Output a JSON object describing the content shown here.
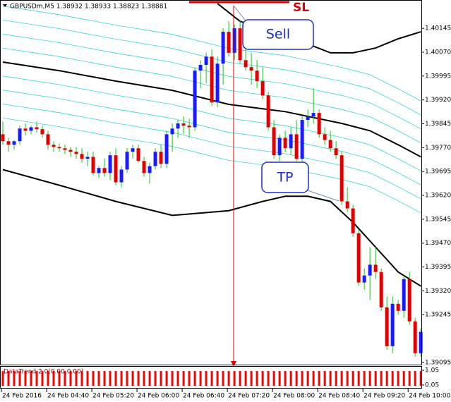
{
  "chart_data": {
    "type": "candlestick",
    "title": "GBPUSDm,M5  1.38932 1.38933 1.38823 1.38881",
    "xlim": [
      -0.5,
      74.1
    ],
    "ylim": [
      1.39088,
      1.40234
    ],
    "xticks": [
      {
        "value": 0,
        "label": "24 Feb 2016"
      },
      {
        "value": 8,
        "label": "24 Feb 04:40"
      },
      {
        "value": 16,
        "label": "24 Feb 05:20"
      },
      {
        "value": 24,
        "label": "24 Feb 06:00"
      },
      {
        "value": 32,
        "label": "24 Feb 06:40"
      },
      {
        "value": 40,
        "label": "24 Feb 07:20"
      },
      {
        "value": 48,
        "label": "24 Feb 08:00"
      },
      {
        "value": 56,
        "label": "24 Feb 08:40"
      },
      {
        "value": 64,
        "label": "24 Feb 09:20"
      },
      {
        "value": 72,
        "label": "24 Feb 10:00"
      }
    ],
    "yticks": [
      1.40145,
      {
        "value": 1.4007,
        "label": "1.40070"
      },
      1.39995,
      {
        "value": 1.3992,
        "label": "1.39920"
      },
      1.39845,
      {
        "value": 1.3977,
        "label": "1.39770"
      },
      1.39695,
      {
        "value": 1.3962,
        "label": "1.39620"
      },
      1.39545,
      {
        "value": 1.3947,
        "label": "1.39470"
      },
      1.39395,
      {
        "value": 1.3932,
        "label": "1.39320"
      },
      1.39245,
      1.39095
    ],
    "up_color": "#1a1aff",
    "down_color": "#e00000",
    "wick_color": "#22c022",
    "open": [
      1.39812,
      1.3979,
      1.39779,
      1.3979,
      1.3983,
      1.39823,
      1.39834,
      1.39828,
      1.39812,
      1.39779,
      1.39772,
      1.39768,
      1.39763,
      1.39757,
      1.3975,
      1.39735,
      1.39741,
      1.3969,
      1.39706,
      1.3969,
      1.39746,
      1.39661,
      1.39701,
      1.39757,
      1.39768,
      1.39728,
      1.3969,
      1.39712,
      1.39757,
      1.39719,
      1.39812,
      1.3983,
      1.39846,
      1.39839,
      1.39834,
      1.40012,
      1.4003,
      1.40056,
      1.39912,
      1.40034,
      1.40134,
      1.40068,
      1.40145,
      1.40045,
      1.40023,
      1.40012,
      1.39979,
      1.39934,
      1.39834,
      1.39746,
      1.39801,
      1.39768,
      1.39812,
      1.39735,
      1.39857,
      1.39868,
      1.39879,
      1.39812,
      1.39794,
      1.39768,
      1.39746,
      1.39601,
      1.39579,
      1.39501,
      1.39346,
      1.39368,
      1.39402,
      1.39379,
      1.39268,
      1.39146,
      1.39279,
      1.39257,
      1.39357,
      1.39224,
      1.39124
    ],
    "high": [
      1.39852,
      1.39801,
      1.39794,
      1.39839,
      1.39846,
      1.39839,
      1.39852,
      1.39839,
      1.39823,
      1.3979,
      1.39783,
      1.39779,
      1.39772,
      1.39772,
      1.39768,
      1.39757,
      1.39757,
      1.39712,
      1.39735,
      1.39757,
      1.39768,
      1.39712,
      1.39768,
      1.39779,
      1.39779,
      1.39741,
      1.39723,
      1.39768,
      1.39779,
      1.39823,
      1.39846,
      1.39857,
      1.39868,
      1.39861,
      1.40023,
      1.40045,
      1.40068,
      1.40079,
      1.40056,
      1.40145,
      1.40167,
      1.40156,
      1.40167,
      1.40101,
      1.40068,
      1.40045,
      1.40023,
      1.39945,
      1.39857,
      1.39812,
      1.39823,
      1.39834,
      1.39857,
      1.39868,
      1.3989,
      1.39957,
      1.3989,
      1.39834,
      1.39823,
      1.3979,
      1.39757,
      1.39646,
      1.3959,
      1.39513,
      1.3939,
      1.39457,
      1.39457,
      1.3939,
      1.39302,
      1.39302,
      1.39291,
      1.39368,
      1.39379,
      1.39235,
      1.39202
    ],
    "low": [
      1.39779,
      1.39757,
      1.39763,
      1.39779,
      1.39808,
      1.39812,
      1.39817,
      1.39801,
      1.39763,
      1.39757,
      1.39757,
      1.3975,
      1.39741,
      1.39735,
      1.39723,
      1.39712,
      1.39683,
      1.39675,
      1.39679,
      1.39668,
      1.39652,
      1.39646,
      1.3969,
      1.39735,
      1.39723,
      1.39679,
      1.39657,
      1.39701,
      1.39706,
      1.39706,
      1.39757,
      1.39801,
      1.39812,
      1.39801,
      1.39823,
      1.39957,
      1.39972,
      1.39901,
      1.39897,
      1.39968,
      1.40056,
      1.40045,
      1.40034,
      1.40012,
      1.39968,
      1.39957,
      1.39923,
      1.39823,
      1.39735,
      1.39728,
      1.39757,
      1.39746,
      1.39728,
      1.39719,
      1.39834,
      1.39846,
      1.39801,
      1.39779,
      1.39757,
      1.39735,
      1.3959,
      1.39568,
      1.3949,
      1.39335,
      1.39324,
      1.39291,
      1.39357,
      1.39257,
      1.39135,
      1.39124,
      1.39246,
      1.39235,
      1.39213,
      1.39113,
      1.39113
    ],
    "close": [
      1.3979,
      1.39779,
      1.3979,
      1.3983,
      1.39823,
      1.39834,
      1.39828,
      1.39812,
      1.39779,
      1.39772,
      1.39768,
      1.39763,
      1.39757,
      1.3975,
      1.39735,
      1.39741,
      1.3969,
      1.39706,
      1.3969,
      1.39746,
      1.39661,
      1.39701,
      1.39757,
      1.39768,
      1.39728,
      1.3969,
      1.39712,
      1.39757,
      1.39719,
      1.39812,
      1.3983,
      1.39846,
      1.39839,
      1.39834,
      1.40012,
      1.4003,
      1.40056,
      1.39912,
      1.40034,
      1.40134,
      1.40068,
      1.40145,
      1.40045,
      1.40023,
      1.40012,
      1.39979,
      1.39934,
      1.39834,
      1.39746,
      1.39801,
      1.39768,
      1.39812,
      1.39735,
      1.39857,
      1.39868,
      1.39879,
      1.39812,
      1.39794,
      1.39768,
      1.39746,
      1.39601,
      1.39579,
      1.39501,
      1.39346,
      1.39368,
      1.39402,
      1.39379,
      1.39268,
      1.39146,
      1.39279,
      1.39257,
      1.39357,
      1.39224,
      1.39124,
      1.39191
    ],
    "series": [
      {
        "color": "#000000",
        "x": [
          0,
          10,
          20,
          30,
          40,
          50,
          60,
          65,
          70,
          74
        ],
        "values": [
          1.40039,
          1.40012,
          1.39979,
          1.3995,
          1.39906,
          1.39883,
          1.39846,
          1.39823,
          1.39779,
          1.39741
        ]
      },
      {
        "color": "#000000",
        "x": [
          38,
          42,
          46,
          50,
          54,
          58,
          62,
          66,
          70,
          74
        ],
        "values": [
          1.40223,
          1.40167,
          1.40145,
          1.40128,
          1.40096,
          1.40068,
          1.40068,
          1.40083,
          1.40112,
          1.40134
        ]
      },
      {
        "color": "#000000",
        "x": [
          0,
          10,
          20,
          30,
          40,
          46,
          50,
          54,
          58,
          62,
          66,
          70,
          74
        ],
        "values": [
          1.39701,
          1.39652,
          1.39601,
          1.39557,
          1.39572,
          1.39601,
          1.39617,
          1.39617,
          1.39601,
          1.39535,
          1.39457,
          1.39379,
          1.39335
        ]
      },
      {
        "color": "#33d6d6",
        "x": [
          0,
          10,
          20,
          30,
          40,
          50,
          60,
          65,
          70,
          74
        ],
        "values": [
          1.40215,
          1.40188,
          1.40155,
          1.40126,
          1.40082,
          1.40059,
          1.40022,
          1.39999,
          1.39955,
          1.39917
        ]
      },
      {
        "color": "#33d6d6",
        "x": [
          0,
          10,
          20,
          30,
          40,
          50,
          60,
          65,
          70,
          74
        ],
        "values": [
          1.40171,
          1.40144,
          1.40111,
          1.40082,
          1.40038,
          1.40015,
          1.39978,
          1.39955,
          1.39911,
          1.39873
        ]
      },
      {
        "color": "#33d6d6",
        "x": [
          0,
          10,
          20,
          30,
          40,
          50,
          60,
          65,
          70,
          74
        ],
        "values": [
          1.40127,
          1.401,
          1.40067,
          1.40038,
          1.39994,
          1.39971,
          1.39934,
          1.39911,
          1.39867,
          1.39829
        ]
      },
      {
        "color": "#33d6d6",
        "x": [
          0,
          10,
          20,
          30,
          40,
          50,
          60,
          65,
          70,
          74
        ],
        "values": [
          1.40083,
          1.40056,
          1.40023,
          1.39994,
          1.3995,
          1.39927,
          1.3989,
          1.39867,
          1.39823,
          1.39785
        ]
      },
      {
        "color": "#33d6d6",
        "x": [
          0,
          10,
          20,
          30,
          40,
          50,
          60,
          65,
          70,
          74
        ],
        "values": [
          1.39995,
          1.39968,
          1.39935,
          1.39906,
          1.39862,
          1.39839,
          1.39802,
          1.39779,
          1.39735,
          1.39697
        ]
      },
      {
        "color": "#33d6d6",
        "x": [
          0,
          10,
          20,
          30,
          40,
          50,
          60,
          65,
          70,
          74
        ],
        "values": [
          1.39951,
          1.39924,
          1.39891,
          1.39862,
          1.39818,
          1.39795,
          1.39758,
          1.39735,
          1.39691,
          1.39653
        ]
      },
      {
        "color": "#33d6d6",
        "x": [
          0,
          10,
          20,
          30,
          40,
          50,
          60,
          65,
          70,
          74
        ],
        "values": [
          1.39907,
          1.3988,
          1.39847,
          1.39818,
          1.39774,
          1.39751,
          1.39714,
          1.39691,
          1.39647,
          1.39609
        ]
      },
      {
        "color": "#33d6d6",
        "x": [
          0,
          10,
          20,
          30,
          40,
          50,
          60,
          65,
          70,
          74
        ],
        "values": [
          1.39863,
          1.39836,
          1.39803,
          1.39774,
          1.3973,
          1.39707,
          1.3967,
          1.39647,
          1.39603,
          1.39565
        ]
      }
    ],
    "annotations": {
      "sell": "Sell",
      "tp": "TP",
      "sl": "SL"
    },
    "indicator": {
      "label": "DataTrend 2.0(0.00,0.00)",
      "color": "#ff0000",
      "ylim": [
        -0.19,
        1.34
      ],
      "yticks": [
        1.05,
        0.05
      ],
      "values": [
        1,
        1,
        1,
        1,
        1,
        1,
        1,
        1,
        1,
        1,
        1,
        1,
        1,
        1,
        1,
        1,
        1,
        1,
        1,
        1,
        1,
        1,
        1,
        1,
        1,
        1,
        1,
        1,
        1,
        1,
        1,
        1,
        1,
        1,
        1,
        1,
        1,
        1,
        1,
        1,
        1,
        1,
        1,
        1,
        1,
        1,
        1,
        1,
        1,
        1,
        1,
        1,
        1,
        1,
        1,
        1,
        1,
        1,
        1,
        1,
        1,
        1,
        1,
        1,
        1,
        1,
        1,
        1,
        1,
        1,
        1,
        1,
        1,
        1,
        1
      ]
    }
  }
}
